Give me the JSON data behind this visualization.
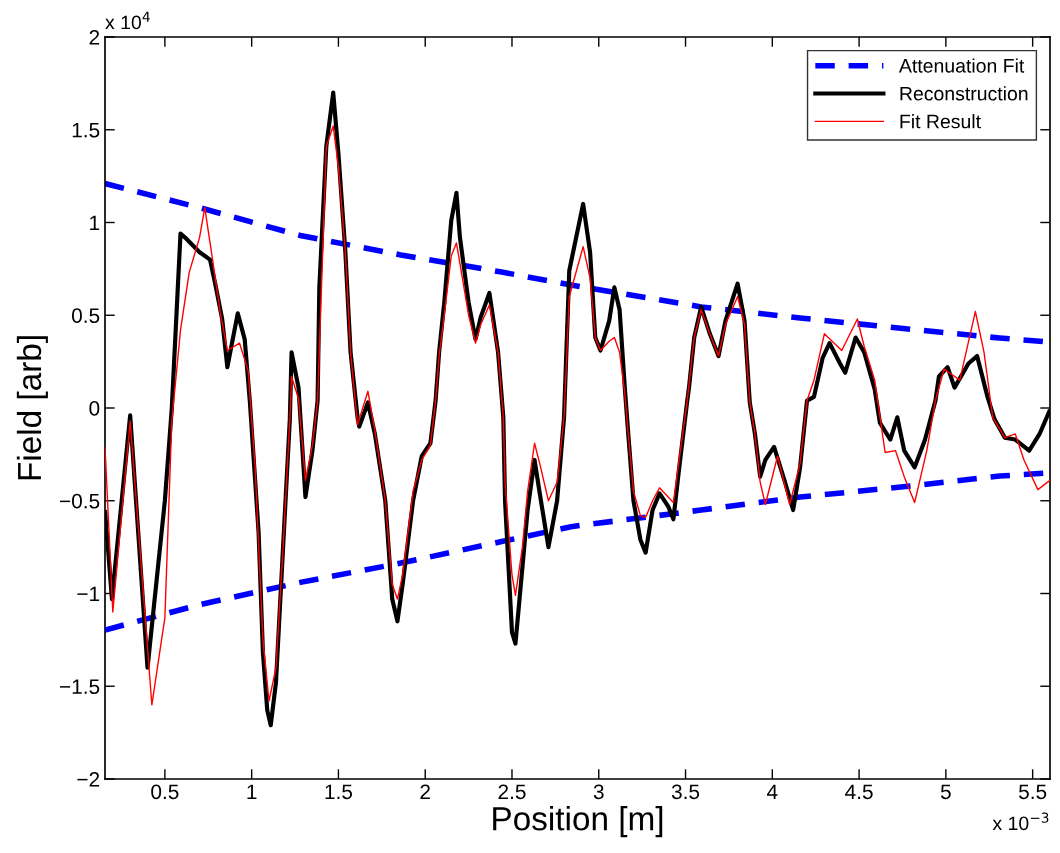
{
  "chart_data": {
    "type": "line",
    "xlabel": "Position [m]",
    "ylabel": "Field [arb]",
    "xlim": [
      0.155,
      5.6
    ],
    "ylim": [
      -2,
      2
    ],
    "xticks": [
      0.5,
      1,
      1.5,
      2,
      2.5,
      3,
      3.5,
      4,
      4.5,
      5,
      5.5
    ],
    "yticks": [
      {
        "value": -2,
        "label": "−2"
      },
      {
        "value": -1.5,
        "label": "−1.5"
      },
      {
        "value": -1,
        "label": "−1"
      },
      {
        "value": -0.5,
        "label": "−0.5"
      },
      0,
      0.5,
      1,
      1.5,
      2
    ],
    "annotations": [
      "x 10$^{4}$",
      "x 10$^{−3}$"
    ],
    "legend": "top right",
    "grid": false,
    "marker": "none",
    "series": [
      {
        "name": "Attenuation Fit",
        "color": "#0000ff",
        "line_style": "dashed",
        "x": [
          0.155,
          0.7,
          1.28,
          1.86,
          2.44,
          2.84,
          3.59,
          4.16,
          4.74,
          5.31,
          5.6
        ],
        "values": [
          1.21,
          1.08,
          0.93,
          0.825,
          0.733,
          0.663,
          0.545,
          0.485,
          0.43,
          0.377,
          0.356
        ]
      },
      {
        "color": "#0000ff",
        "line_style": "dashed",
        "x": [
          0.155,
          0.7,
          1.28,
          1.86,
          2.44,
          2.84,
          3.59,
          4.16,
          4.74,
          5.31,
          5.6
        ],
        "values": [
          -1.197,
          -1.06,
          -0.94,
          -0.836,
          -0.72,
          -0.64,
          -0.55,
          -0.48,
          -0.426,
          -0.367,
          -0.35
        ]
      },
      {
        "name": "Reconstruction",
        "color": "#000000",
        "line_style": "solid",
        "x": [
          0.155,
          0.195,
          0.3,
          0.4,
          0.5,
          0.54,
          0.59,
          0.615,
          0.7,
          0.76,
          0.79,
          0.83,
          0.86,
          0.92,
          0.96,
          0.99,
          1.04,
          1.065,
          1.09,
          1.11,
          1.14,
          1.18,
          1.22,
          1.23,
          1.27,
          1.31,
          1.35,
          1.38,
          1.39,
          1.43,
          1.47,
          1.5,
          1.54,
          1.57,
          1.61,
          1.62,
          1.67,
          1.71,
          1.77,
          1.81,
          1.84,
          1.87,
          1.93,
          1.98,
          2.03,
          2.06,
          2.08,
          2.11,
          2.15,
          2.18,
          2.2,
          2.25,
          2.29,
          2.32,
          2.37,
          2.42,
          2.45,
          2.46,
          2.5,
          2.52,
          2.56,
          2.59,
          2.63,
          2.66,
          2.71,
          2.76,
          2.8,
          2.83,
          2.91,
          2.95,
          2.98,
          3.01,
          3.06,
          3.09,
          3.12,
          3.15,
          3.17,
          3.2,
          3.24,
          3.27,
          3.31,
          3.35,
          3.4,
          3.43,
          3.46,
          3.51,
          3.52,
          3.55,
          3.59,
          3.64,
          3.69,
          3.73,
          3.8,
          3.84,
          3.87,
          3.9,
          3.93,
          3.96,
          4.01,
          4.07,
          4.12,
          4.16,
          4.2,
          4.24,
          4.29,
          4.33,
          4.39,
          4.42,
          4.48,
          4.53,
          4.59,
          4.62,
          4.68,
          4.72,
          4.76,
          4.82,
          4.88,
          4.94,
          4.96,
          5.01,
          5.05,
          5.13,
          5.18,
          5.24,
          5.28,
          5.34,
          5.4,
          5.48,
          5.54,
          5.6
        ],
        "values": [
          -0.55,
          -1.03,
          -0.04,
          -1.4,
          -0.5,
          0.0,
          0.94,
          0.92,
          0.84,
          0.8,
          0.67,
          0.48,
          0.22,
          0.51,
          0.37,
          0.03,
          -0.67,
          -1.32,
          -1.63,
          -1.71,
          -1.48,
          -0.77,
          -0.06,
          0.3,
          0.11,
          -0.48,
          -0.23,
          0.04,
          0.65,
          1.41,
          1.7,
          1.37,
          0.84,
          0.3,
          -0.05,
          -0.1,
          0.03,
          -0.14,
          -0.5,
          -1.03,
          -1.15,
          -0.95,
          -0.5,
          -0.26,
          -0.19,
          0.04,
          0.3,
          0.57,
          1.01,
          1.16,
          0.92,
          0.57,
          0.37,
          0.49,
          0.62,
          0.3,
          -0.05,
          -0.5,
          -1.21,
          -1.27,
          -0.86,
          -0.55,
          -0.28,
          -0.46,
          -0.75,
          -0.5,
          -0.05,
          0.74,
          1.1,
          0.84,
          0.38,
          0.31,
          0.47,
          0.65,
          0.53,
          0.11,
          -0.14,
          -0.5,
          -0.71,
          -0.78,
          -0.55,
          -0.46,
          -0.53,
          -0.6,
          -0.35,
          0.04,
          0.11,
          0.38,
          0.545,
          0.4,
          0.28,
          0.47,
          0.67,
          0.47,
          0.03,
          -0.14,
          -0.37,
          -0.28,
          -0.21,
          -0.39,
          -0.55,
          -0.32,
          0.04,
          0.06,
          0.27,
          0.35,
          0.24,
          0.19,
          0.38,
          0.3,
          0.1,
          -0.08,
          -0.17,
          -0.05,
          -0.23,
          -0.32,
          -0.17,
          0.04,
          0.17,
          0.22,
          0.11,
          0.24,
          0.28,
          0.06,
          -0.06,
          -0.16,
          -0.17,
          -0.23,
          -0.14,
          -0.01
        ]
      },
      {
        "name": "Fit Result",
        "color": "#ff0000",
        "line_style": "solid",
        "x": [
          0.155,
          0.2,
          0.3,
          0.425,
          0.5,
          0.54,
          0.59,
          0.64,
          0.7,
          0.73,
          0.77,
          0.82,
          0.86,
          0.93,
          0.98,
          1.02,
          1.065,
          1.1,
          1.14,
          1.18,
          1.22,
          1.23,
          1.27,
          1.31,
          1.35,
          1.38,
          1.43,
          1.47,
          1.5,
          1.54,
          1.57,
          1.61,
          1.67,
          1.71,
          1.77,
          1.81,
          1.84,
          1.87,
          1.93,
          1.98,
          2.03,
          2.06,
          2.08,
          2.11,
          2.15,
          2.18,
          2.2,
          2.25,
          2.29,
          2.32,
          2.37,
          2.42,
          2.45,
          2.46,
          2.5,
          2.52,
          2.56,
          2.59,
          2.63,
          2.66,
          2.71,
          2.76,
          2.8,
          2.83,
          2.91,
          2.95,
          2.98,
          3.01,
          3.06,
          3.09,
          3.12,
          3.15,
          3.17,
          3.2,
          3.24,
          3.27,
          3.31,
          3.35,
          3.4,
          3.43,
          3.46,
          3.51,
          3.55,
          3.59,
          3.64,
          3.69,
          3.73,
          3.8,
          3.84,
          3.87,
          3.9,
          3.93,
          3.96,
          4.03,
          4.1,
          4.16,
          4.2,
          4.24,
          4.3,
          4.4,
          4.49,
          4.53,
          4.59,
          4.65,
          4.71,
          4.76,
          4.82,
          4.89,
          4.94,
          4.99,
          5.08,
          5.17,
          5.22,
          5.27,
          5.34,
          5.4,
          5.45,
          5.53,
          5.6
        ],
        "values": [
          -0.21,
          -1.1,
          -0.07,
          -1.6,
          -1.13,
          -0.07,
          0.42,
          0.73,
          0.92,
          1.08,
          0.83,
          0.51,
          0.31,
          0.35,
          0.2,
          -0.32,
          -1.25,
          -1.58,
          -1.4,
          -0.77,
          -0.06,
          0.17,
          0.05,
          -0.39,
          -0.2,
          0.04,
          1.41,
          1.52,
          1.3,
          0.84,
          0.3,
          -0.09,
          0.09,
          -0.12,
          -0.5,
          -0.95,
          -1.03,
          -0.9,
          -0.45,
          -0.28,
          -0.2,
          0.04,
          0.28,
          0.5,
          0.82,
          0.89,
          0.78,
          0.5,
          0.35,
          0.45,
          0.555,
          0.3,
          -0.05,
          -0.4,
          -0.9,
          -1.01,
          -0.75,
          -0.45,
          -0.19,
          -0.3,
          -0.5,
          -0.4,
          -0.05,
          0.6,
          0.87,
          0.7,
          0.38,
          0.31,
          0.36,
          0.38,
          0.3,
          0.08,
          -0.14,
          -0.45,
          -0.58,
          -0.59,
          -0.5,
          -0.43,
          -0.48,
          -0.51,
          -0.3,
          0.04,
          0.38,
          0.53,
          0.4,
          0.28,
          0.45,
          0.6,
          0.45,
          0.03,
          -0.14,
          -0.4,
          -0.52,
          -0.26,
          -0.52,
          -0.3,
          0.04,
          0.15,
          0.4,
          0.31,
          0.48,
          0.33,
          0.15,
          -0.24,
          -0.23,
          -0.37,
          -0.51,
          -0.23,
          0.04,
          0.21,
          0.15,
          0.52,
          0.3,
          -0.05,
          -0.16,
          -0.14,
          -0.28,
          -0.44,
          -0.39
        ]
      }
    ]
  }
}
